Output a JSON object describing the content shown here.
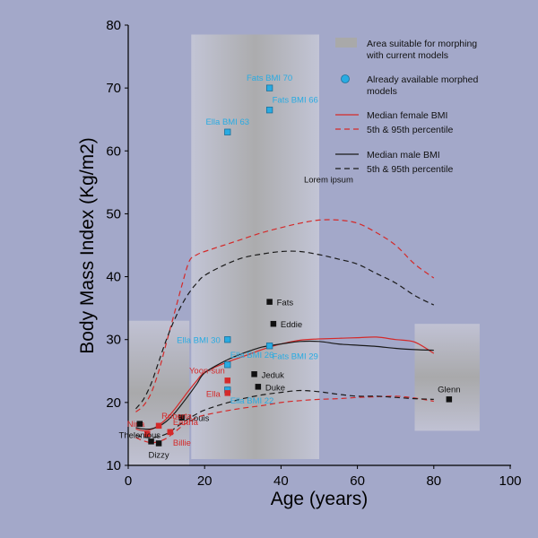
{
  "chart_data": {
    "type": "line",
    "xlabel": "Age (years)",
    "ylabel": "Body Mass Index (Kg/m2)",
    "xlim": [
      0,
      100
    ],
    "ylim": [
      10,
      80
    ],
    "xticks": [
      0,
      20,
      40,
      60,
      80,
      100
    ],
    "yticks": [
      10,
      20,
      30,
      40,
      50,
      60,
      70,
      80
    ],
    "grid": false,
    "legend": {
      "placement": "top-right",
      "entries": [
        {
          "label": "Area suitable for morphing with current models",
          "lines": [
            "Area suitable for morphing",
            "with current models"
          ],
          "kind": "area",
          "color": "#a9a9a9"
        },
        {
          "label": "Already available morphed models",
          "lines": [
            "Already available morphed",
            "models"
          ],
          "kind": "marker",
          "color": "#29abe2"
        },
        {
          "label": "Median female BMI",
          "lines": [
            "Median female BMI"
          ],
          "kind": "solid",
          "color": "#d42a2a"
        },
        {
          "label": "5th & 95th percentile",
          "lines": [
            "5th & 95th percentile"
          ],
          "kind": "dashed",
          "color": "#d42a2a"
        },
        {
          "label": "Median male BMI",
          "lines": [
            "Median male BMI"
          ],
          "kind": "solid",
          "color": "#1a1a1a"
        },
        {
          "label": "5th & 95th percentile",
          "lines": [
            "5th & 95th percentile"
          ],
          "kind": "dashed",
          "color": "#1a1a1a"
        }
      ]
    },
    "regions": [
      {
        "x": [
          0,
          16
        ],
        "y": [
          10,
          33
        ],
        "label": ""
      },
      {
        "x": [
          16.5,
          50
        ],
        "y": [
          11,
          78.5
        ],
        "label": "Lorem ipsum",
        "label_at": [
          46,
          55
        ]
      },
      {
        "x": [
          75,
          92
        ],
        "y": [
          15.5,
          32.5
        ],
        "label": ""
      }
    ],
    "colors": {
      "female": "#d42a2a",
      "male": "#1a1a1a",
      "available": "#29abe2",
      "person_female": "#d42a2a",
      "person_male": "#111111",
      "area": "#a9a9a9",
      "background": "#a3a8c9"
    },
    "series": [
      {
        "name": "Median female BMI",
        "group": "female",
        "style": "solid",
        "x": [
          2,
          4,
          6,
          8,
          10,
          12,
          14,
          16,
          18,
          20,
          25,
          30,
          35,
          40,
          45,
          50,
          55,
          60,
          65,
          70,
          75,
          80
        ],
        "y": [
          15.8,
          15.5,
          15.7,
          16.4,
          17.4,
          18.8,
          20.4,
          22.0,
          23.5,
          24.8,
          26.2,
          27.3,
          28.4,
          29.3,
          29.9,
          30.1,
          30.2,
          30.3,
          30.4,
          30.0,
          29.6,
          27.8
        ]
      },
      {
        "name": "5th & 95th percentile",
        "group": "female",
        "style": "dashed",
        "x": [
          2,
          4,
          6,
          8,
          10,
          12,
          14,
          16,
          18,
          20,
          25,
          30,
          35,
          40,
          45,
          50,
          55,
          60,
          65,
          70,
          75,
          80
        ],
        "y": [
          14.4,
          13.9,
          13.6,
          13.8,
          14.3,
          15.2,
          16.2,
          17.0,
          17.6,
          18.0,
          18.6,
          19.1,
          19.5,
          20.0,
          20.3,
          20.5,
          20.6,
          20.8,
          20.9,
          21.0,
          20.7,
          20.2
        ]
      },
      {
        "name": "5th & 95th percentile",
        "group": "female",
        "style": "dashed",
        "x": [
          2,
          4,
          6,
          8,
          10,
          12,
          14,
          16,
          18,
          20,
          25,
          30,
          35,
          40,
          45,
          50,
          55,
          60,
          65,
          70,
          75,
          80
        ],
        "y": [
          18.5,
          19.5,
          21.5,
          25.0,
          29.5,
          34.0,
          38.5,
          42.5,
          43.5,
          44.0,
          45.0,
          46.0,
          47.0,
          47.8,
          48.5,
          49.0,
          49.0,
          48.5,
          47.0,
          45.0,
          42.0,
          39.8
        ]
      },
      {
        "name": "Median male BMI",
        "group": "male",
        "style": "solid",
        "x": [
          2,
          4,
          6,
          8,
          10,
          12,
          14,
          16,
          18,
          20,
          25,
          30,
          35,
          40,
          45,
          50,
          55,
          60,
          65,
          70,
          75,
          80
        ],
        "y": [
          16.0,
          15.8,
          15.8,
          16.2,
          17.0,
          18.2,
          19.7,
          21.3,
          23.0,
          24.7,
          26.5,
          27.8,
          28.8,
          29.3,
          29.7,
          29.7,
          29.3,
          29.1,
          28.9,
          28.6,
          28.4,
          28.3
        ]
      },
      {
        "name": "5th & 95th percentile",
        "group": "male",
        "style": "dashed",
        "x": [
          2,
          4,
          6,
          8,
          10,
          12,
          14,
          16,
          18,
          20,
          25,
          30,
          35,
          40,
          45,
          50,
          55,
          60,
          65,
          70,
          75,
          80
        ],
        "y": [
          14.8,
          14.5,
          14.4,
          14.6,
          15.0,
          15.8,
          16.7,
          17.5,
          18.2,
          18.8,
          19.8,
          20.6,
          21.2,
          21.6,
          21.9,
          21.7,
          21.3,
          21.0,
          21.0,
          20.8,
          20.6,
          20.5
        ]
      },
      {
        "name": "5th & 95th percentile",
        "group": "male",
        "style": "dashed",
        "x": [
          2,
          4,
          6,
          8,
          10,
          12,
          14,
          16,
          18,
          20,
          25,
          30,
          35,
          40,
          45,
          50,
          55,
          60,
          65,
          70,
          75,
          80
        ],
        "y": [
          19.0,
          20.5,
          23.0,
          26.5,
          30.0,
          33.0,
          35.5,
          37.5,
          39.0,
          40.2,
          41.8,
          43.0,
          43.6,
          44.0,
          44.0,
          43.5,
          42.8,
          42.0,
          40.5,
          39.0,
          37.0,
          35.5
        ]
      }
    ],
    "points": [
      {
        "name": "Fats BMI 70",
        "x": 37,
        "y": 70,
        "group": "available",
        "label_pos": "above"
      },
      {
        "name": "Fats BMI 66",
        "x": 37,
        "y": 66.5,
        "group": "available",
        "label_pos": "above-right"
      },
      {
        "name": "Ella BMI 63",
        "x": 26,
        "y": 63,
        "group": "available",
        "label_pos": "above"
      },
      {
        "name": "Ella BMI 30",
        "x": 26,
        "y": 30,
        "group": "available",
        "label_pos": "left"
      },
      {
        "name": "Ella BMI 26",
        "x": 26,
        "y": 26,
        "group": "available",
        "label_pos": "above-right"
      },
      {
        "name": "Ella BMI 22",
        "x": 26,
        "y": 22,
        "group": "available",
        "label_pos": "below-right"
      },
      {
        "name": "Fats BMI 29",
        "x": 37,
        "y": 29,
        "group": "available",
        "label_pos": "below-right"
      },
      {
        "name": "Fats",
        "x": 37,
        "y": 36,
        "group": "male",
        "label_pos": "right"
      },
      {
        "name": "Eddie",
        "x": 38,
        "y": 32.5,
        "group": "male",
        "label_pos": "right"
      },
      {
        "name": "Jeduk",
        "x": 33,
        "y": 24.5,
        "group": "male",
        "label_pos": "right"
      },
      {
        "name": "Duke",
        "x": 34,
        "y": 22.5,
        "group": "male",
        "label_pos": "right"
      },
      {
        "name": "Yoon-sun",
        "x": 26,
        "y": 23.5,
        "group": "female",
        "label_pos": "above-left"
      },
      {
        "name": "Ella",
        "x": 26,
        "y": 21.5,
        "group": "female",
        "label_pos": "left"
      },
      {
        "name": "Louis",
        "x": 14,
        "y": 17.6,
        "group": "male",
        "label_pos": "right"
      },
      {
        "name": "Eartha",
        "x": 11,
        "y": 15.3,
        "group": "female",
        "label_pos": "above-right"
      },
      {
        "name": "Billie",
        "x": 11,
        "y": 15.3,
        "group": "female",
        "label_pos": "below-right"
      },
      {
        "name": "Roberta",
        "x": 8,
        "y": 16.3,
        "group": "female",
        "label_pos": "above-right"
      },
      {
        "name": "Nina",
        "x": 5,
        "y": 15.0,
        "group": "female",
        "label_pos": "above-left"
      },
      {
        "name": "Thelonious",
        "x": 3,
        "y": 16.6,
        "group": "male",
        "label_pos": "below"
      },
      {
        "name": "Dizzy",
        "x": 8,
        "y": 13.5,
        "group": "male",
        "label_pos": "below"
      },
      {
        "name": "",
        "x": 6,
        "y": 13.8,
        "group": "male",
        "label_pos": "none"
      },
      {
        "name": "Glenn",
        "x": 84,
        "y": 20.5,
        "group": "male",
        "label_pos": "above"
      }
    ]
  }
}
